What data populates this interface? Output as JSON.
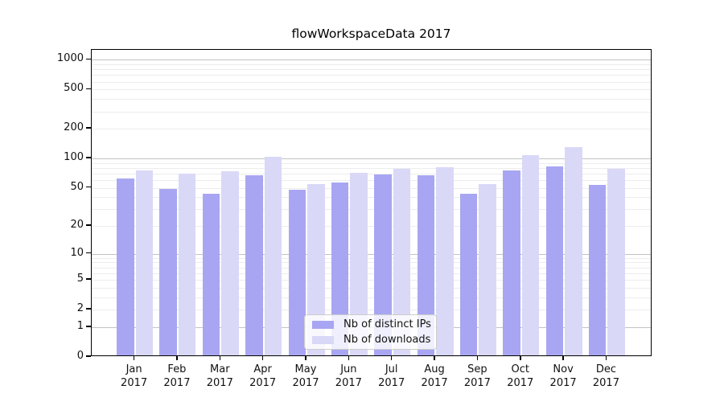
{
  "title": "flowWorkspaceData 2017",
  "chart_data": {
    "type": "bar",
    "title": "flowWorkspaceData 2017",
    "categories": [
      "Jan",
      "Feb",
      "Mar",
      "Apr",
      "May",
      "Jun",
      "Jul",
      "Aug",
      "Sep",
      "Oct",
      "Nov",
      "Dec"
    ],
    "category_year": "2017",
    "series": [
      {
        "name": "Nb of distinct IPs",
        "color": "#a8a6f2",
        "values": [
          60,
          47,
          42,
          65,
          46,
          55,
          66,
          65,
          42,
          72,
          80,
          52
        ]
      },
      {
        "name": "Nb of downloads",
        "color": "#d9d8f7",
        "values": [
          72,
          67,
          71,
          100,
          53,
          68,
          76,
          79,
          53,
          104,
          125,
          76
        ]
      }
    ],
    "xlabel": "",
    "ylabel": "",
    "yscale": "log1p",
    "yticks": [
      0,
      1,
      2,
      5,
      10,
      20,
      50,
      100,
      200,
      500,
      1000
    ],
    "ylim": [
      0,
      1260
    ],
    "grid": "major-decades + minor-log-subdivisions",
    "legend_position": "inside-bottom-center"
  },
  "colors": {
    "major_grid": "#c2c2c2",
    "minor_grid": "#ececec",
    "spine": "#000000",
    "text": "#111111"
  }
}
